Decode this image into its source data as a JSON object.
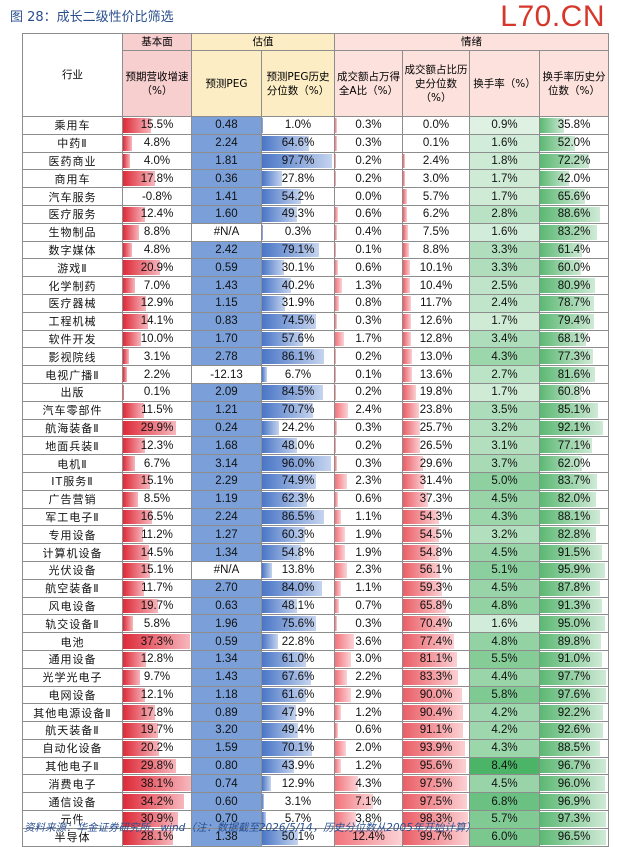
{
  "figure_title": "图 28：成长二级性价比筛选",
  "watermark": "L70.CN",
  "header": {
    "group_base": "基本面",
    "group_val": "估值",
    "group_emo": "情绪",
    "industry": "行业",
    "growth": "预期营收增速（%）",
    "peg": "预测PEG",
    "peg_pct": "预测PEG历史分位数（%）",
    "vol_share": "成交额占万得全A比（%）",
    "vol_pct": "成交额占比历史分位数（%）",
    "turnover": "换手率（%）",
    "turnover_pct": "换手率历史分位数（%）"
  },
  "rows": [
    {
      "industry": "乘用车",
      "growth": "15.5%",
      "peg": "0.48",
      "peg_pct": "1.0%",
      "vol_share": "0.3%",
      "vol_pct": "0.0%",
      "turnover": "0.9%",
      "turnover_pct": "35.8%"
    },
    {
      "industry": "中药Ⅱ",
      "growth": "4.8%",
      "peg": "2.24",
      "peg_pct": "64.6%",
      "vol_share": "0.3%",
      "vol_pct": "0.1%",
      "turnover": "1.6%",
      "turnover_pct": "52.0%"
    },
    {
      "industry": "医药商业",
      "growth": "4.0%",
      "peg": "1.81",
      "peg_pct": "97.7%",
      "vol_share": "0.2%",
      "vol_pct": "2.4%",
      "turnover": "1.8%",
      "turnover_pct": "72.2%"
    },
    {
      "industry": "商用车",
      "growth": "17.8%",
      "peg": "0.36",
      "peg_pct": "27.8%",
      "vol_share": "0.2%",
      "vol_pct": "3.0%",
      "turnover": "1.7%",
      "turnover_pct": "42.0%"
    },
    {
      "industry": "汽车服务",
      "growth": "-0.8%",
      "peg": "1.41",
      "peg_pct": "54.2%",
      "vol_share": "0.0%",
      "vol_pct": "5.7%",
      "turnover": "1.7%",
      "turnover_pct": "65.6%"
    },
    {
      "industry": "医疗服务",
      "growth": "12.4%",
      "peg": "1.60",
      "peg_pct": "49.3%",
      "vol_share": "0.6%",
      "vol_pct": "6.2%",
      "turnover": "2.8%",
      "turnover_pct": "88.6%"
    },
    {
      "industry": "生物制品",
      "growth": "8.8%",
      "peg": "#N/A",
      "peg_pct": "0.3%",
      "vol_share": "0.4%",
      "vol_pct": "7.5%",
      "turnover": "1.6%",
      "turnover_pct": "83.2%"
    },
    {
      "industry": "数字媒体",
      "growth": "4.8%",
      "peg": "2.42",
      "peg_pct": "79.1%",
      "vol_share": "0.1%",
      "vol_pct": "8.8%",
      "turnover": "3.3%",
      "turnover_pct": "61.4%"
    },
    {
      "industry": "游戏Ⅱ",
      "growth": "20.9%",
      "peg": "0.59",
      "peg_pct": "30.1%",
      "vol_share": "0.6%",
      "vol_pct": "10.1%",
      "turnover": "3.3%",
      "turnover_pct": "60.0%"
    },
    {
      "industry": "化学制药",
      "growth": "7.0%",
      "peg": "1.43",
      "peg_pct": "40.2%",
      "vol_share": "1.3%",
      "vol_pct": "10.4%",
      "turnover": "2.5%",
      "turnover_pct": "80.9%"
    },
    {
      "industry": "医疗器械",
      "growth": "12.9%",
      "peg": "1.15",
      "peg_pct": "31.9%",
      "vol_share": "0.8%",
      "vol_pct": "11.7%",
      "turnover": "2.4%",
      "turnover_pct": "78.7%"
    },
    {
      "industry": "工程机械",
      "growth": "14.1%",
      "peg": "0.83",
      "peg_pct": "74.5%",
      "vol_share": "0.3%",
      "vol_pct": "12.6%",
      "turnover": "1.7%",
      "turnover_pct": "79.4%"
    },
    {
      "industry": "软件开发",
      "growth": "10.0%",
      "peg": "1.70",
      "peg_pct": "57.6%",
      "vol_share": "1.7%",
      "vol_pct": "12.8%",
      "turnover": "3.4%",
      "turnover_pct": "68.1%"
    },
    {
      "industry": "影视院线",
      "growth": "3.1%",
      "peg": "2.78",
      "peg_pct": "86.1%",
      "vol_share": "0.2%",
      "vol_pct": "13.0%",
      "turnover": "4.3%",
      "turnover_pct": "77.3%"
    },
    {
      "industry": "电视广播Ⅱ",
      "growth": "2.2%",
      "peg": "-12.13",
      "peg_pct": "6.7%",
      "vol_share": "0.1%",
      "vol_pct": "13.6%",
      "turnover": "2.7%",
      "turnover_pct": "81.6%"
    },
    {
      "industry": "出版",
      "growth": "0.1%",
      "peg": "2.09",
      "peg_pct": "84.5%",
      "vol_share": "0.2%",
      "vol_pct": "19.8%",
      "turnover": "1.7%",
      "turnover_pct": "60.8%"
    },
    {
      "industry": "汽车零部件",
      "growth": "11.5%",
      "peg": "1.21",
      "peg_pct": "70.7%",
      "vol_share": "2.4%",
      "vol_pct": "23.8%",
      "turnover": "3.5%",
      "turnover_pct": "85.1%"
    },
    {
      "industry": "航海装备Ⅱ",
      "growth": "29.9%",
      "peg": "0.24",
      "peg_pct": "24.2%",
      "vol_share": "0.3%",
      "vol_pct": "25.7%",
      "turnover": "3.2%",
      "turnover_pct": "92.1%"
    },
    {
      "industry": "地面兵装Ⅱ",
      "growth": "12.3%",
      "peg": "1.68",
      "peg_pct": "48.0%",
      "vol_share": "0.2%",
      "vol_pct": "26.5%",
      "turnover": "3.1%",
      "turnover_pct": "77.1%"
    },
    {
      "industry": "电机Ⅱ",
      "growth": "6.7%",
      "peg": "3.14",
      "peg_pct": "96.0%",
      "vol_share": "0.3%",
      "vol_pct": "29.6%",
      "turnover": "3.7%",
      "turnover_pct": "62.0%"
    },
    {
      "industry": "IT服务Ⅱ",
      "growth": "15.1%",
      "peg": "2.29",
      "peg_pct": "74.9%",
      "vol_share": "2.3%",
      "vol_pct": "31.4%",
      "turnover": "5.0%",
      "turnover_pct": "83.7%"
    },
    {
      "industry": "广告营销",
      "growth": "8.5%",
      "peg": "1.19",
      "peg_pct": "62.3%",
      "vol_share": "0.6%",
      "vol_pct": "37.3%",
      "turnover": "4.5%",
      "turnover_pct": "82.0%"
    },
    {
      "industry": "军工电子Ⅱ",
      "growth": "16.5%",
      "peg": "2.24",
      "peg_pct": "86.5%",
      "vol_share": "1.1%",
      "vol_pct": "54.3%",
      "turnover": "4.3%",
      "turnover_pct": "88.1%"
    },
    {
      "industry": "专用设备",
      "growth": "11.2%",
      "peg": "1.27",
      "peg_pct": "60.3%",
      "vol_share": "1.9%",
      "vol_pct": "54.5%",
      "turnover": "3.2%",
      "turnover_pct": "82.8%"
    },
    {
      "industry": "计算机设备",
      "growth": "14.5%",
      "peg": "1.34",
      "peg_pct": "54.8%",
      "vol_share": "1.9%",
      "vol_pct": "54.8%",
      "turnover": "4.5%",
      "turnover_pct": "91.5%"
    },
    {
      "industry": "光伏设备",
      "growth": "15.1%",
      "peg": "#N/A",
      "peg_pct": "13.8%",
      "vol_share": "2.3%",
      "vol_pct": "56.1%",
      "turnover": "5.1%",
      "turnover_pct": "95.9%"
    },
    {
      "industry": "航空装备Ⅱ",
      "growth": "11.7%",
      "peg": "2.70",
      "peg_pct": "84.0%",
      "vol_share": "1.1%",
      "vol_pct": "59.3%",
      "turnover": "4.5%",
      "turnover_pct": "87.8%"
    },
    {
      "industry": "风电设备",
      "growth": "19.7%",
      "peg": "0.63",
      "peg_pct": "48.1%",
      "vol_share": "0.7%",
      "vol_pct": "65.8%",
      "turnover": "4.8%",
      "turnover_pct": "91.3%"
    },
    {
      "industry": "轨交设备Ⅱ",
      "growth": "5.8%",
      "peg": "1.96",
      "peg_pct": "75.6%",
      "vol_share": "0.3%",
      "vol_pct": "70.4%",
      "turnover": "1.6%",
      "turnover_pct": "95.0%"
    },
    {
      "industry": "电池",
      "growth": "37.3%",
      "peg": "0.59",
      "peg_pct": "22.8%",
      "vol_share": "3.6%",
      "vol_pct": "77.4%",
      "turnover": "4.8%",
      "turnover_pct": "89.8%"
    },
    {
      "industry": "通用设备",
      "growth": "12.8%",
      "peg": "1.34",
      "peg_pct": "61.0%",
      "vol_share": "3.0%",
      "vol_pct": "81.1%",
      "turnover": "5.5%",
      "turnover_pct": "91.0%"
    },
    {
      "industry": "光学光电子",
      "growth": "9.7%",
      "peg": "1.43",
      "peg_pct": "67.6%",
      "vol_share": "2.2%",
      "vol_pct": "83.3%",
      "turnover": "4.4%",
      "turnover_pct": "97.7%"
    },
    {
      "industry": "电网设备",
      "growth": "12.1%",
      "peg": "1.18",
      "peg_pct": "61.6%",
      "vol_share": "2.9%",
      "vol_pct": "90.0%",
      "turnover": "5.8%",
      "turnover_pct": "97.6%"
    },
    {
      "industry": "其他电源设备Ⅱ",
      "growth": "17.8%",
      "peg": "0.89",
      "peg_pct": "47.9%",
      "vol_share": "1.2%",
      "vol_pct": "90.4%",
      "turnover": "4.2%",
      "turnover_pct": "92.2%"
    },
    {
      "industry": "航天装备Ⅱ",
      "growth": "19.7%",
      "peg": "3.20",
      "peg_pct": "49.4%",
      "vol_share": "0.6%",
      "vol_pct": "91.1%",
      "turnover": "4.2%",
      "turnover_pct": "92.6%"
    },
    {
      "industry": "自动化设备",
      "growth": "20.2%",
      "peg": "1.59",
      "peg_pct": "70.1%",
      "vol_share": "2.0%",
      "vol_pct": "93.9%",
      "turnover": "4.3%",
      "turnover_pct": "88.5%"
    },
    {
      "industry": "其他电子Ⅱ",
      "growth": "29.8%",
      "peg": "0.80",
      "peg_pct": "43.9%",
      "vol_share": "1.2%",
      "vol_pct": "95.6%",
      "turnover": "8.4%",
      "turnover_pct": "96.7%"
    },
    {
      "industry": "消费电子",
      "growth": "38.1%",
      "peg": "0.74",
      "peg_pct": "12.9%",
      "vol_share": "4.3%",
      "vol_pct": "97.5%",
      "turnover": "4.5%",
      "turnover_pct": "96.0%"
    },
    {
      "industry": "通信设备",
      "growth": "34.2%",
      "peg": "0.60",
      "peg_pct": "3.1%",
      "vol_share": "7.1%",
      "vol_pct": "97.5%",
      "turnover": "6.8%",
      "turnover_pct": "96.9%"
    },
    {
      "industry": "元件",
      "growth": "30.9%",
      "peg": "0.70",
      "peg_pct": "5.7%",
      "vol_share": "3.8%",
      "vol_pct": "98.3%",
      "turnover": "5.7%",
      "turnover_pct": "97.3%"
    },
    {
      "industry": "半导体",
      "growth": "28.1%",
      "peg": "1.38",
      "peg_pct": "50.1%",
      "vol_share": "12.4%",
      "vol_pct": "99.7%",
      "turnover": "6.0%",
      "turnover_pct": "96.5%"
    }
  ],
  "colors": {
    "growth_bar": "#dd2a38",
    "peg_fill": "#7a9fd9",
    "peg_pct_bar": "#4a76c6",
    "vol_share_bar": "#f2737b",
    "vol_pct_bar": "#ea5e66",
    "turnover_highlight": "#2fa84f",
    "turnover_pct_bar": "#5cb873",
    "title_blue": "#2a4f8f",
    "watermark_red": "#d6372b"
  },
  "source": "资料来源：华金证券研究所，wind（注：数据截至2026/5/14，历史分位数从2005年开始计算）"
}
